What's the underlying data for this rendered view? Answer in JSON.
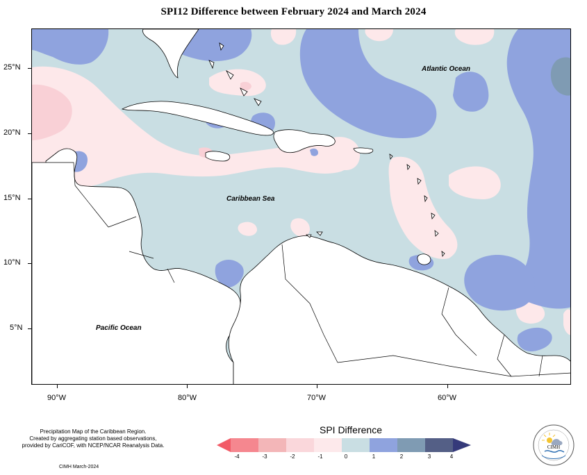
{
  "title": "SPI12 Difference between February 2024 and March 2024",
  "map": {
    "x_ticks": [
      "90°W",
      "80°W",
      "70°W",
      "60°W"
    ],
    "y_ticks": [
      "25°N",
      "20°N",
      "15°N",
      "10°N",
      "5°N"
    ],
    "labels": {
      "atlantic": "Atlantic Ocean",
      "caribbean": "Caribbean Sea",
      "pacific": "Pacific Ocean"
    },
    "colors": {
      "land": "#ffffff",
      "near_zero_positive": "#c9dee3",
      "near_zero_negative": "#fde8ea",
      "dry_light": "#f9d0d6",
      "wet_moderate": "#8fa3de",
      "wet_strong": "#7f9bb3",
      "border": "#000000"
    }
  },
  "footer": {
    "line1": "Precipitation Map of the Caribbean Region.",
    "line2": "Created by aggregating station based observations,",
    "line3": "provided by CariCOF, with NCEP/NCAR Reanalysis Data.",
    "credit": "CIMH March-2024"
  },
  "legend": {
    "title": "SPI Difference",
    "labels": [
      "-4",
      "-3",
      "-2",
      "-1",
      "0",
      "1",
      "2",
      "3",
      "4"
    ],
    "colors": [
      "#f5878f",
      "#f3b6b8",
      "#fad7db",
      "#fde9eb",
      "#c9dee3",
      "#8fa3de",
      "#7f9bb3",
      "#545f86"
    ],
    "arrow_low_color": "#f25b67",
    "arrow_high_color": "#353a7a"
  },
  "logo": {
    "text": "CIMH",
    "icon": "cimh-logo-icon"
  }
}
